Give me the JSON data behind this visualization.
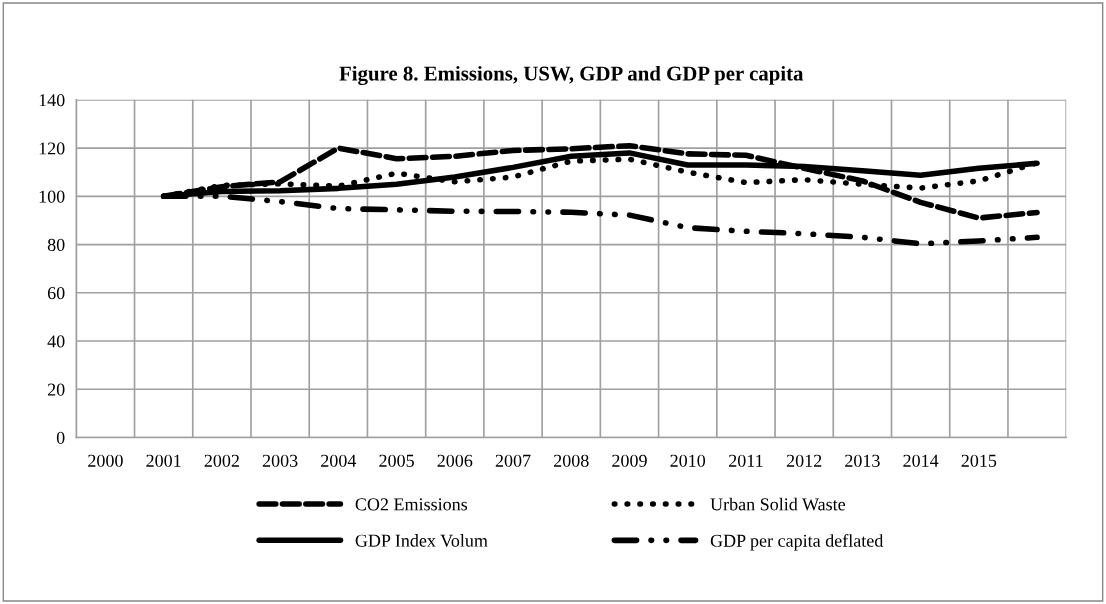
{
  "chart_data": {
    "type": "line",
    "title": "Figure 8. Emissions, USW, GDP and GDP per capita",
    "categories": [
      "2000",
      "2001",
      "2002",
      "2003",
      "2004",
      "2005",
      "2006",
      "2007",
      "2008",
      "2009",
      "2010",
      "2011",
      "2012",
      "2013",
      "2014",
      "2015",
      null
    ],
    "series": [
      {
        "name": "CO2 Emissions",
        "color": "#000000",
        "line_style": "dashed",
        "values": [
          null,
          100,
          104,
          106,
          120,
          115.6,
          116.6,
          119,
          119.7,
          121,
          117.6,
          117,
          111.6,
          106.4,
          97.5,
          91,
          93.3
        ]
      },
      {
        "name": "Urban Solid Waste",
        "color": "#000000",
        "line_style": "dotted",
        "values": [
          null,
          100,
          104.5,
          105.2,
          104.2,
          109.6,
          106,
          108,
          114.6,
          115.4,
          110,
          105.7,
          106.9,
          105,
          103.4,
          106.4,
          113.9
        ]
      },
      {
        "name": "GDP Index Volum",
        "color": "#000000",
        "line_style": "solid",
        "values": [
          null,
          100,
          102,
          102.3,
          103.3,
          105,
          108,
          112,
          116.6,
          118,
          113,
          113,
          112.4,
          110.6,
          108.7,
          111.6,
          113.7
        ]
      },
      {
        "name": "GDP per capita deflated",
        "color": "#000000",
        "line_style": "dashdot",
        "values": [
          null,
          100,
          100,
          97.8,
          94.9,
          94.4,
          93.8,
          93.7,
          93.4,
          92.2,
          87,
          85.5,
          84.5,
          83,
          80.3,
          81.5,
          83
        ]
      }
    ],
    "ylim": [
      0,
      140
    ],
    "yticks": [
      0,
      20,
      40,
      60,
      80,
      100,
      120,
      140
    ],
    "grid": true,
    "legend": "bottom",
    "marker": "none"
  }
}
